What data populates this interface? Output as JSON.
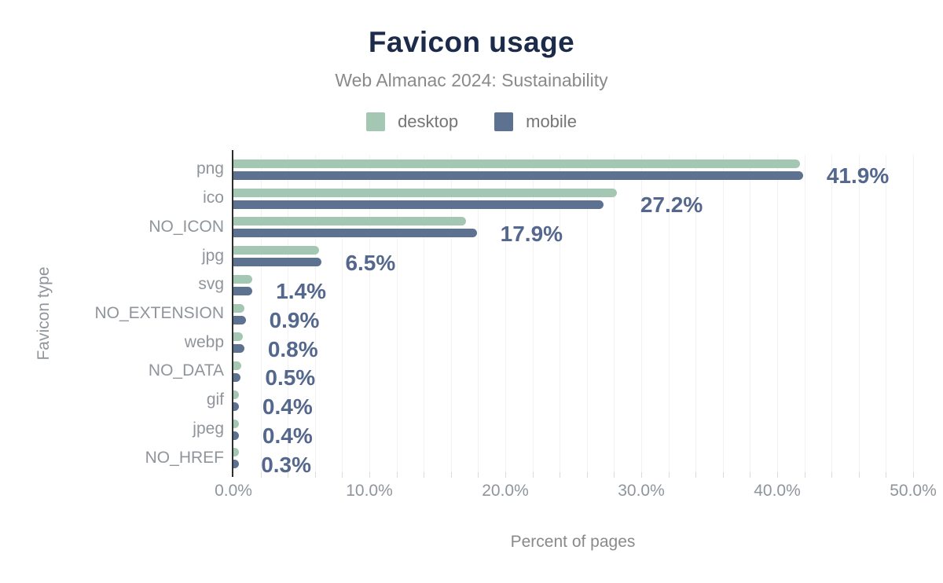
{
  "title": "Favicon usage",
  "subtitle": "Web Almanac 2024: Sustainability",
  "legend": [
    {
      "label": "desktop",
      "color": "#a4c7b4"
    },
    {
      "label": "mobile",
      "color": "#5d7190"
    }
  ],
  "colors": {
    "title": "#1c2b4a",
    "subtitle": "#8a8a8a",
    "legend_text": "#757575",
    "value_label": "#54678c",
    "axis_text": "#8f959b",
    "axis_line": "#2e2e2e",
    "gridline": "#f2f2f2",
    "background": "#ffffff",
    "desktop": "#a4c7b4",
    "mobile": "#5d7190"
  },
  "chart_data": {
    "type": "bar",
    "orientation": "horizontal",
    "title": "Favicon usage",
    "subtitle": "Web Almanac 2024: Sustainability",
    "xlabel": "Percent of pages",
    "ylabel": "Favicon type",
    "xlim": [
      0,
      50
    ],
    "grid": true,
    "grid_step": 2,
    "legend_position": "top",
    "x_tick_values": [
      0,
      10,
      20,
      30,
      40,
      50
    ],
    "x_tick_labels": [
      "0.0%",
      "10.0%",
      "20.0%",
      "30.0%",
      "40.0%",
      "50.0%"
    ],
    "categories": [
      "png",
      "ico",
      "NO_ICON",
      "jpg",
      "svg",
      "NO_EXTENSION",
      "webp",
      "NO_DATA",
      "gif",
      "jpeg",
      "NO_HREF"
    ],
    "series": [
      {
        "name": "desktop",
        "color": "#a4c7b4",
        "values": [
          41.7,
          28.2,
          17.1,
          6.3,
          1.4,
          0.8,
          0.7,
          0.6,
          0.4,
          0.4,
          0.3
        ]
      },
      {
        "name": "mobile",
        "color": "#5d7190",
        "values": [
          41.9,
          27.2,
          17.9,
          6.5,
          1.4,
          0.9,
          0.8,
          0.5,
          0.4,
          0.4,
          0.3
        ]
      }
    ],
    "value_labels": [
      "41.9%",
      "27.2%",
      "17.9%",
      "6.5%",
      "1.4%",
      "0.9%",
      "0.8%",
      "0.5%",
      "0.4%",
      "0.4%",
      "0.3%"
    ]
  }
}
